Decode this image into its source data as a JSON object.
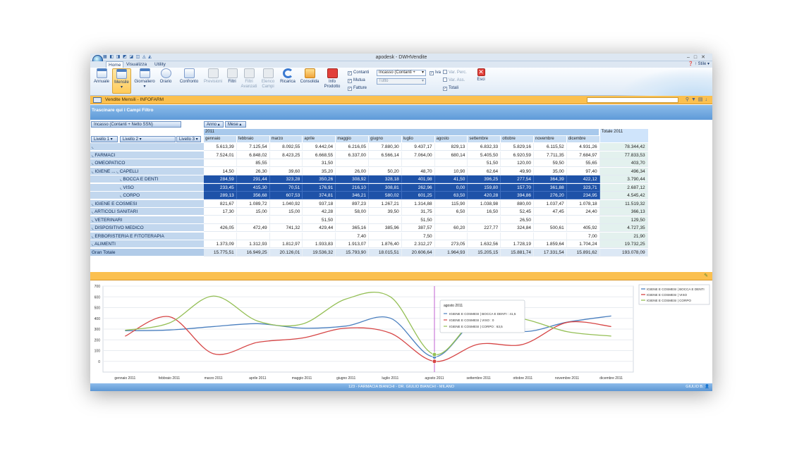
{
  "window": {
    "title": "apodesk - DWHVendite",
    "quick_access": "▦ ◧ ◨ ◩ ◪ ◫ ◬ ◭"
  },
  "tabs": [
    "Home",
    "Visualizza",
    "Utility"
  ],
  "help": {
    "label": "Stile"
  },
  "ribbon": {
    "buttons": [
      "Annuale",
      "Mensile",
      "Giornaliero",
      "Orario",
      "Confronto",
      "Previsioni",
      "Filtri",
      "Filtri Avanzati",
      "Elenco Campi",
      "Ricarica",
      "Consolida",
      "Info Prodotto",
      "Esci"
    ],
    "checks": [
      "Contanti",
      "Mutua",
      "Fatture"
    ],
    "combo1": "Incasso (Contanti +",
    "combo2": "Tutto",
    "iva": "Iva",
    "var_perc": "Var. Perc.",
    "var_ass": "Var. Ass.",
    "totali": "Totali"
  },
  "panel1": {
    "title": "Vendite Mensili - INFOFARM"
  },
  "pivot": {
    "drag_hint": "Trascinare qui i Campi Filtro",
    "data_field": "Incasso (Contanti + Netto SSN)",
    "col_fields": [
      "Anno",
      "Mese"
    ],
    "row_fields": [
      "Livello 1",
      "Livello 2",
      "Livello 3"
    ],
    "year": "2011",
    "total_header": "Totale 2011",
    "months": [
      "gennaio",
      "febbraio",
      "marzo",
      "aprile",
      "maggio",
      "giugno",
      "luglio",
      "agosto",
      "settembre",
      "ottobre",
      "novembre",
      "dicembre"
    ],
    "rows": [
      {
        "l1": "",
        "l2": "",
        "l3": "",
        "values": [
          "5.613,39",
          "7.125,54",
          "8.092,55",
          "9.442,04",
          "6.216,05",
          "7.880,30",
          "9.437,17",
          "829,13",
          "6.832,33",
          "5.829,16",
          "6.115,52",
          "4.931,26"
        ],
        "total": "78.344,42"
      },
      {
        "l1": "FARMACI",
        "values": [
          "7.524,01",
          "6.848,02",
          "8.423,25",
          "6.668,55",
          "6.337,00",
          "6.566,14",
          "7.064,00",
          "680,14",
          "5.405,50",
          "6.920,59",
          "7.711,35",
          "7.684,97"
        ],
        "total": "77.833,53"
      },
      {
        "l1": "OMEOPATICO",
        "values": [
          "",
          "85,55",
          "",
          "31,50",
          "",
          "",
          "",
          "",
          "51,50",
          "120,00",
          "59,50",
          "55,65"
        ],
        "total": "403,70"
      },
      {
        "l1": "IGIENE ...",
        "l2": "CAPELLI",
        "values": [
          "14,50",
          "26,30",
          "39,60",
          "35,20",
          "26,00",
          "50,20",
          "48,70",
          "10,90",
          "62,64",
          "49,90",
          "35,00",
          "97,40"
        ],
        "total": "496,34"
      },
      {
        "l2": "BOCCA E DENTI",
        "sel": true,
        "values": [
          "284,59",
          "291,44",
          "323,28",
          "350,26",
          "308,92",
          "328,18",
          "401,98",
          "41,50",
          "396,25",
          "277,54",
          "364,39",
          "422,12"
        ],
        "total": "3.790,44"
      },
      {
        "l2": "VISO",
        "sel": true,
        "values": [
          "233,45",
          "415,30",
          "70,51",
          "176,91",
          "216,10",
          "308,81",
          "262,96",
          "0,00",
          "159,80",
          "157,70",
          "361,88",
          "323,71"
        ],
        "total": "2.687,12"
      },
      {
        "l2": "CORPO",
        "sel": true,
        "values": [
          "289,13",
          "356,68",
          "607,53",
          "374,81",
          "346,21",
          "580,02",
          "601,25",
          "63,50",
          "420,28",
          "394,86",
          "276,20",
          "234,95"
        ],
        "total": "4.545,42"
      },
      {
        "l1": "IGIENE E COSMESI",
        "values": [
          "821,67",
          "1.089,72",
          "1.040,92",
          "937,18",
          "897,23",
          "1.267,21",
          "1.314,88",
          "115,90",
          "1.038,98",
          "880,00",
          "1.037,47",
          "1.078,18"
        ],
        "total": "11.519,32"
      },
      {
        "l1": "ARTICOLI SANITARI",
        "values": [
          "17,30",
          "15,00",
          "15,00",
          "42,28",
          "58,00",
          "39,50",
          "31,75",
          "6,50",
          "16,50",
          "52,45",
          "47,45",
          "24,40"
        ],
        "total": "366,13"
      },
      {
        "l1": "VETERINARI",
        "values": [
          "",
          "",
          "",
          "51,50",
          "",
          "",
          "51,50",
          "",
          "",
          "26,50",
          "",
          ""
        ],
        "total": "129,50"
      },
      {
        "l1": "DISPOSITIVO MEDICO",
        "values": [
          "426,05",
          "472,49",
          "741,32",
          "429,44",
          "365,16",
          "385,96",
          "387,57",
          "60,20",
          "227,77",
          "324,84",
          "500,61",
          "405,92"
        ],
        "total": "4.727,35"
      },
      {
        "l1": "ERBORISTERIA E FITOTERAPIA",
        "values": [
          "",
          "",
          "",
          "",
          "7,40",
          "",
          "7,50",
          "",
          "",
          "",
          "",
          "7,00"
        ],
        "total": "21,90"
      },
      {
        "l1": "ALIMENTI",
        "values": [
          "1.373,09",
          "1.312,93",
          "1.812,97",
          "1.933,83",
          "1.913,07",
          "1.876,40",
          "2.312,27",
          "273,05",
          "1.632,56",
          "1.728,19",
          "1.859,64",
          "1.704,24"
        ],
        "total": "19.732,25"
      },
      {
        "l1": "Gran Totale",
        "grand": true,
        "values": [
          "15.775,51",
          "16.949,25",
          "20.126,01",
          "19.536,32",
          "15.793,90",
          "18.015,51",
          "20.606,64",
          "1.964,93",
          "15.205,15",
          "15.881,74",
          "17.331,54",
          "15.891,62"
        ],
        "total": "193.078,09"
      }
    ]
  },
  "chart_data": {
    "type": "line",
    "categories": [
      "gennaio 2011",
      "febbraio 2011",
      "marzo 2011",
      "aprile 2011",
      "maggio 2011",
      "giugno 2011",
      "luglio 2011",
      "agosto 2011",
      "settembre 2011",
      "ottobre 2011",
      "novembre 2011",
      "dicembre 2011"
    ],
    "ylim": [
      -100,
      700
    ],
    "yticks": [
      0,
      100,
      200,
      300,
      400,
      500,
      600,
      700
    ],
    "series": [
      {
        "name": "IGIENE E COSMESI | BOCCA E DENTI",
        "color": "#4a7fbf",
        "values": [
          284.59,
          291.44,
          323.28,
          350.26,
          308.92,
          328.18,
          401.98,
          41.5,
          396.25,
          277.54,
          364.39,
          422.12
        ]
      },
      {
        "name": "IGIENE E COSMESI | VISO",
        "color": "#d64545",
        "values": [
          233.45,
          415.3,
          70.51,
          176.91,
          216.1,
          308.81,
          262.96,
          0,
          159.8,
          157.7,
          361.88,
          323.71
        ]
      },
      {
        "name": "IGIENE E COSMESI | CORPO",
        "color": "#94bf55",
        "values": [
          289.13,
          356.68,
          607.53,
          374.81,
          346.21,
          580.02,
          601.25,
          63.5,
          420.28,
          394.86,
          276.2,
          234.95
        ]
      }
    ],
    "tooltip": {
      "title": "agosto 2011",
      "lines": [
        "IGIENE E COSMESI | BOCCA E DENTI : 41,5",
        "IGIENE E COSMESI | VISO : 0",
        "IGIENE E COSMESI | CORPO : 63,5"
      ]
    },
    "highlight_index": 7,
    "legend_position": "top-right"
  },
  "status": {
    "center": "123 - FARMACIA BIANCHI - DR. GIULIO BIANCHI - MILANO",
    "user": "GIULIO B."
  }
}
